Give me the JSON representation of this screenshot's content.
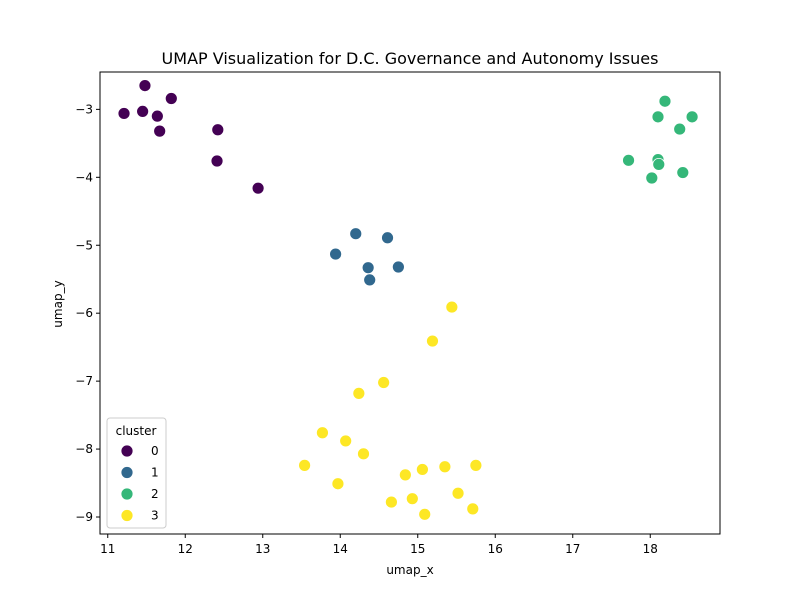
{
  "chart_data": {
    "type": "scatter",
    "title": "UMAP Visualization for D.C. Governance and Autonomy Issues",
    "xlabel": "umap_x",
    "ylabel": "umap_y",
    "xlim": [
      10.9,
      18.9
    ],
    "ylim": [
      -9.25,
      -2.45
    ],
    "xticks": [
      11,
      12,
      13,
      14,
      15,
      16,
      17,
      18
    ],
    "yticks": [
      -3,
      -4,
      -5,
      -6,
      -7,
      -8,
      -9
    ],
    "xtick_labels": [
      "11",
      "12",
      "13",
      "14",
      "15",
      "16",
      "17",
      "18"
    ],
    "ytick_labels": [
      "−3",
      "−4",
      "−5",
      "−6",
      "−7",
      "−8",
      "−9"
    ],
    "grid": false,
    "legend": {
      "title": "cluster",
      "placement": "lower-left"
    },
    "series": [
      {
        "name": "0",
        "color": "#440154",
        "points": [
          [
            11.48,
            -2.65
          ],
          [
            11.82,
            -2.84
          ],
          [
            11.21,
            -3.06
          ],
          [
            11.45,
            -3.03
          ],
          [
            11.64,
            -3.1
          ],
          [
            11.67,
            -3.32
          ],
          [
            12.42,
            -3.3
          ],
          [
            12.41,
            -3.76
          ],
          [
            12.94,
            -4.16
          ]
        ]
      },
      {
        "name": "1",
        "color": "#31688e",
        "points": [
          [
            14.2,
            -4.83
          ],
          [
            14.61,
            -4.89
          ],
          [
            13.94,
            -5.13
          ],
          [
            14.36,
            -5.33
          ],
          [
            14.75,
            -5.32
          ],
          [
            14.38,
            -5.51
          ]
        ]
      },
      {
        "name": "2",
        "color": "#35b779",
        "points": [
          [
            18.19,
            -2.88
          ],
          [
            18.1,
            -3.11
          ],
          [
            18.54,
            -3.11
          ],
          [
            18.38,
            -3.29
          ],
          [
            17.72,
            -3.75
          ],
          [
            18.1,
            -3.74
          ],
          [
            18.11,
            -3.81
          ],
          [
            18.42,
            -3.93
          ],
          [
            18.02,
            -4.01
          ]
        ]
      },
      {
        "name": "3",
        "color": "#fde725",
        "points": [
          [
            15.44,
            -5.91
          ],
          [
            15.19,
            -6.41
          ],
          [
            14.56,
            -7.02
          ],
          [
            14.24,
            -7.18
          ],
          [
            13.77,
            -7.76
          ],
          [
            14.07,
            -7.88
          ],
          [
            14.3,
            -8.07
          ],
          [
            13.54,
            -8.24
          ],
          [
            15.35,
            -8.26
          ],
          [
            15.75,
            -8.24
          ],
          [
            15.06,
            -8.3
          ],
          [
            14.84,
            -8.38
          ],
          [
            13.97,
            -8.51
          ],
          [
            15.52,
            -8.65
          ],
          [
            14.66,
            -8.78
          ],
          [
            14.93,
            -8.73
          ],
          [
            15.71,
            -8.88
          ],
          [
            15.09,
            -8.96
          ]
        ]
      }
    ]
  }
}
